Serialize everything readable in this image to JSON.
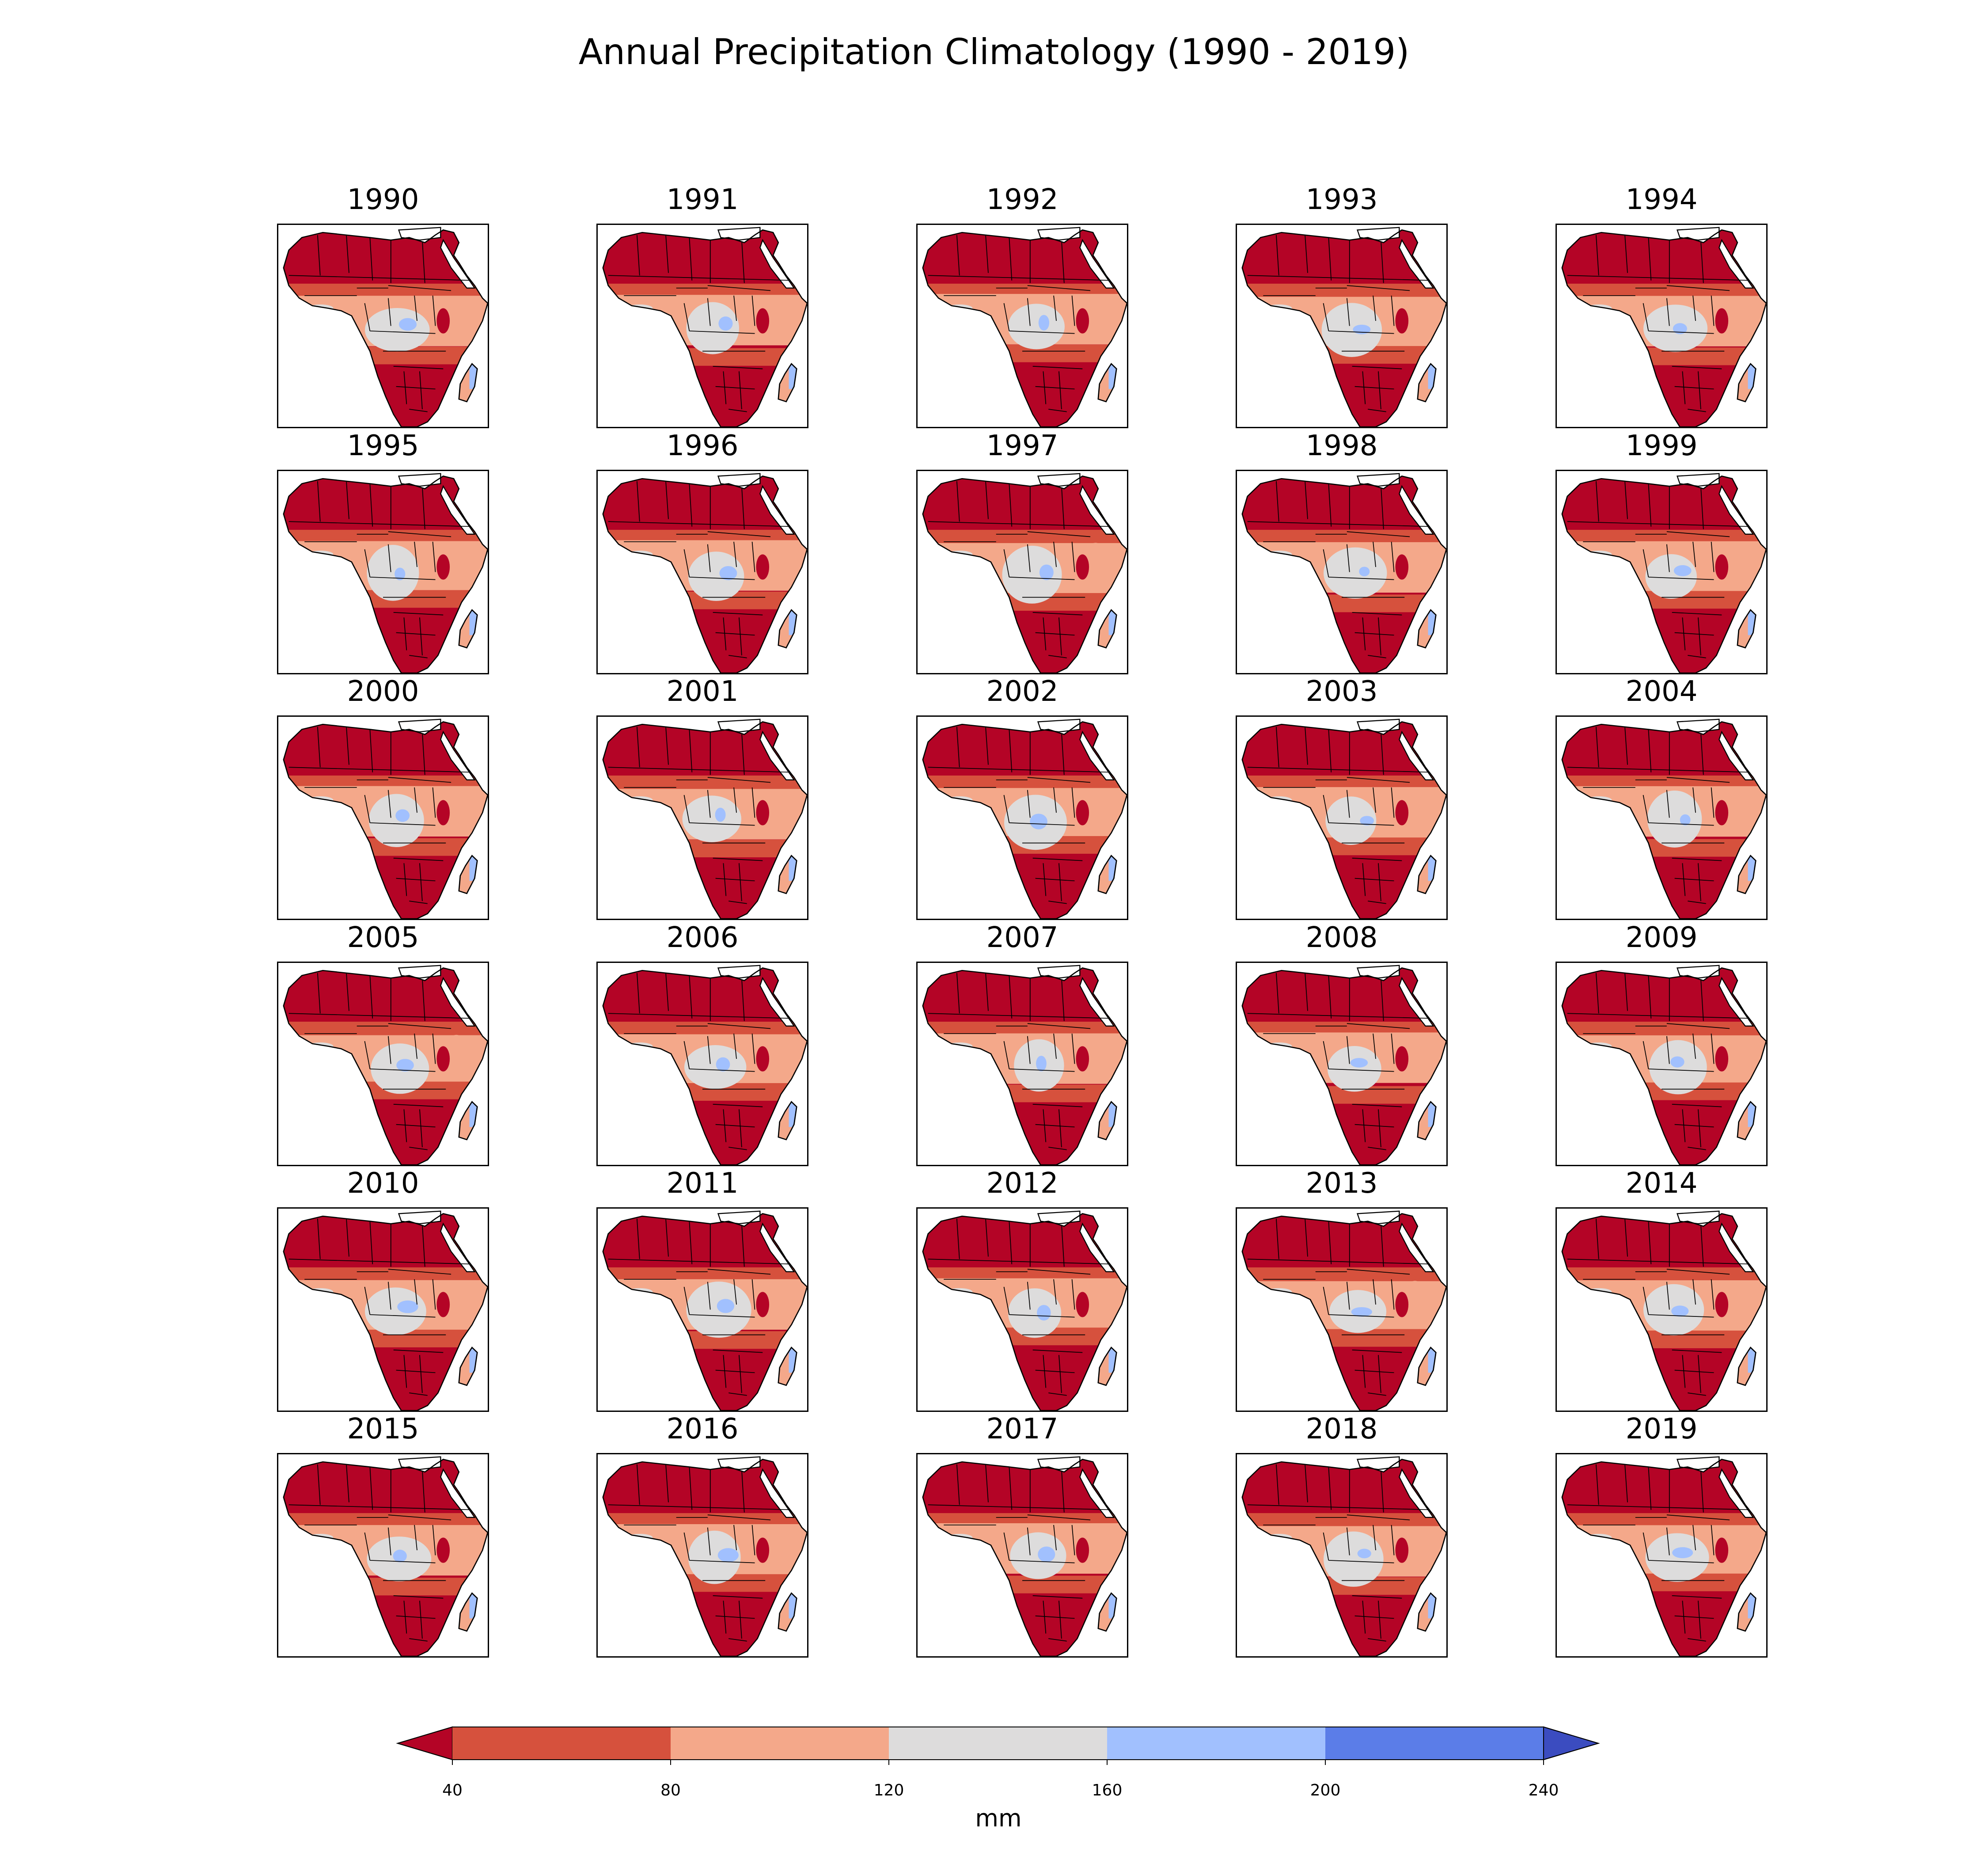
{
  "title": "Annual Precipitation Climatology (1990 - 2019)",
  "chart_data": {
    "type": "heatmap",
    "description_type": "small-multiple filled contour maps",
    "panels": [
      "1990",
      "1991",
      "1992",
      "1993",
      "1994",
      "1995",
      "1996",
      "1997",
      "1998",
      "1999",
      "2000",
      "2001",
      "2002",
      "2003",
      "2004",
      "2005",
      "2006",
      "2007",
      "2008",
      "2009",
      "2010",
      "2011",
      "2012",
      "2013",
      "2014",
      "2015",
      "2016",
      "2017",
      "2018",
      "2019"
    ],
    "colorbar": {
      "label": "mm",
      "ticks": [
        "40",
        "80",
        "120",
        "160",
        "200",
        "240"
      ],
      "levels": [
        40,
        80,
        120,
        160,
        200,
        240
      ],
      "extend": "both",
      "colors": [
        "#b40426",
        "#d6513d",
        "#f4a88a",
        "#dddcdc",
        "#a1c0fe",
        "#5b7de8",
        "#3b4cc0"
      ]
    },
    "grid": {
      "rows": 6,
      "cols": 5
    }
  }
}
